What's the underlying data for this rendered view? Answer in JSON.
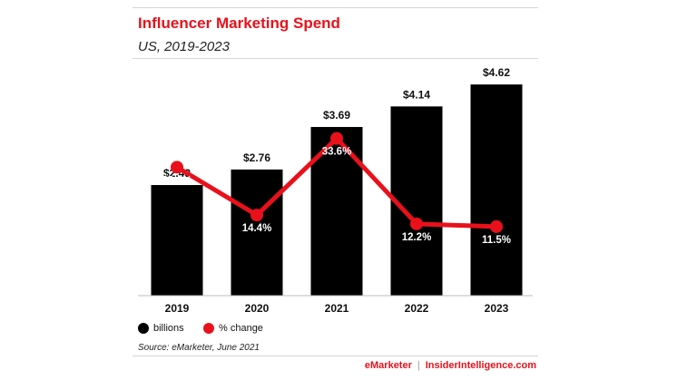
{
  "header": {
    "title": "Influencer Marketing Spend",
    "subtitle": "US, 2019-2023"
  },
  "chart_data": {
    "type": "bar",
    "categories": [
      "2019",
      "2020",
      "2021",
      "2022",
      "2023"
    ],
    "series": [
      {
        "name": "billions",
        "type": "bar",
        "color": "#000000",
        "values": [
          2.42,
          2.76,
          3.69,
          4.14,
          4.62
        ],
        "labels": [
          "$2.42",
          "$2.76",
          "$3.69",
          "$4.14",
          "$4.62"
        ]
      },
      {
        "name": "% change",
        "type": "line",
        "color": "#e8111b",
        "values": [
          26.4,
          14.4,
          33.6,
          12.2,
          11.5
        ],
        "labels": [
          "26.4%",
          "14.4%",
          "33.6%",
          "12.2%",
          "11.5%"
        ]
      }
    ],
    "ylim": [
      0,
      5
    ],
    "y2lim": [
      0,
      60
    ],
    "grid": false,
    "legend_position": "bottom-left"
  },
  "legend": {
    "items": [
      {
        "label": "billions",
        "color": "#000000"
      },
      {
        "label": "% change",
        "color": "#e8111b"
      }
    ]
  },
  "source": "Source: eMarketer, June 2021",
  "footer": {
    "brand_left": "eMarketer",
    "separator": "|",
    "brand_right": "InsiderIntelligence.com"
  }
}
